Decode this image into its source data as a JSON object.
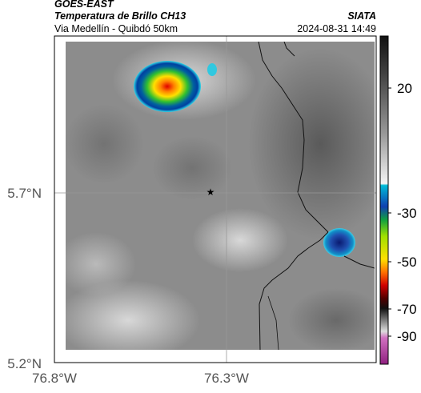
{
  "header": {
    "title": "GOES-EAST",
    "subtitle": "Temperatura de Brillo CH13",
    "location": "Via Medellín - Quibdó 50km",
    "source": "SIATA",
    "datetime": "2024-08-31 14:49"
  },
  "map": {
    "lat_labels": [
      "5.7°N",
      "5.2°N"
    ],
    "lon_labels": [
      "76.8°W",
      "76.3°W"
    ]
  },
  "colorbar": {
    "ticks": [
      20,
      -30,
      -50,
      -70,
      -90
    ]
  }
}
